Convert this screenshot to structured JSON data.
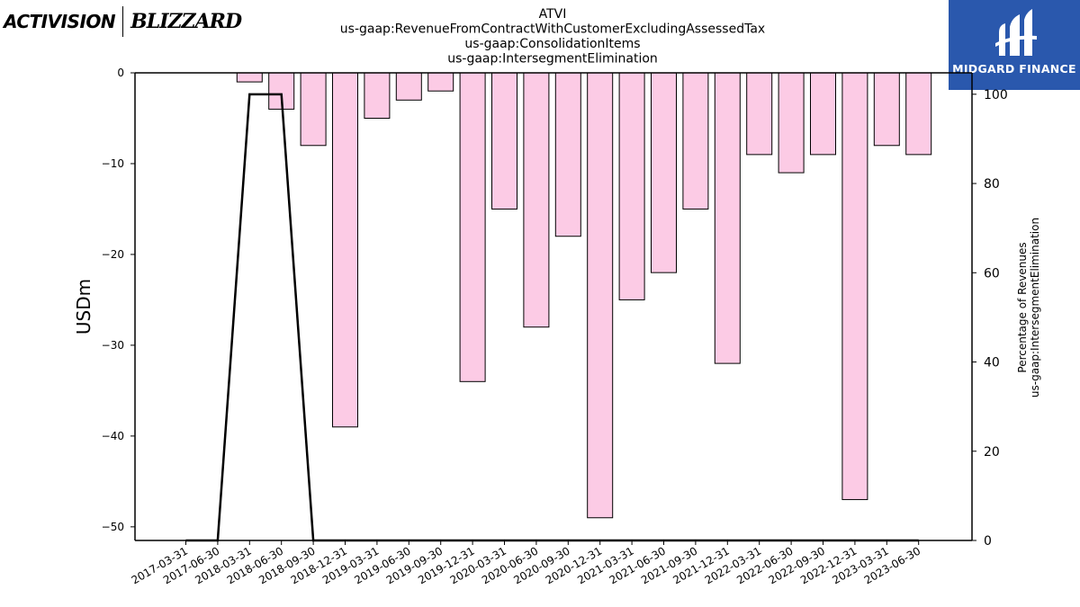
{
  "branding": {
    "left_logo_activision": "ACTIVISION",
    "left_logo_blizzard": "BLIZZARD",
    "right_logo_text": "MIDGARD FINANCE",
    "right_logo_bg": "#2a58ad"
  },
  "chart_data": {
    "type": "bar",
    "title_lines": [
      "ATVI",
      "us-gaap:RevenueFromContractWithCustomerExcludingAssessedTax",
      "us-gaap:ConsolidationItems",
      "us-gaap:IntersegmentElimination"
    ],
    "ylabel": "USDm",
    "y2label_lines": [
      "Percentage of Revenues",
      "us-gaap:IntersegmentElimination"
    ],
    "ylim": [
      -51.5,
      0
    ],
    "y2lim": [
      0,
      104.8
    ],
    "yticks": [
      0,
      -10,
      -20,
      -30,
      -40,
      -50
    ],
    "y2ticks": [
      0,
      20,
      40,
      60,
      80,
      100
    ],
    "grid": false,
    "x": [
      "2017-03-31",
      "2017-06-30",
      "2018-03-31",
      "2018-06-30",
      "2018-09-30",
      "2018-12-31",
      "2019-03-31",
      "2019-06-30",
      "2019-09-30",
      "2019-12-31",
      "2020-03-31",
      "2020-06-30",
      "2020-09-30",
      "2020-12-31",
      "2021-03-31",
      "2021-06-30",
      "2021-09-30",
      "2021-12-31",
      "2022-03-31",
      "2022-06-30",
      "2022-09-30",
      "2022-12-31",
      "2023-03-31",
      "2023-06-30"
    ],
    "series": [
      {
        "type": "bar",
        "axis": "left",
        "color": "#fccbe5",
        "edge": "#000000",
        "values": [
          null,
          null,
          -1,
          -4,
          -8,
          -39,
          -5,
          -3,
          -2,
          -34,
          -15,
          -28,
          -18,
          -49,
          -25,
          -22,
          -15,
          -32,
          -9,
          -11,
          -9,
          -47,
          -8,
          -9
        ]
      },
      {
        "type": "line",
        "axis": "right",
        "color": "#000000",
        "values": [
          0,
          0,
          100,
          100,
          0,
          0,
          0,
          0,
          0,
          0,
          0,
          0,
          0,
          0,
          0,
          0,
          0,
          0,
          0,
          0,
          0,
          0,
          0,
          0
        ]
      }
    ]
  }
}
